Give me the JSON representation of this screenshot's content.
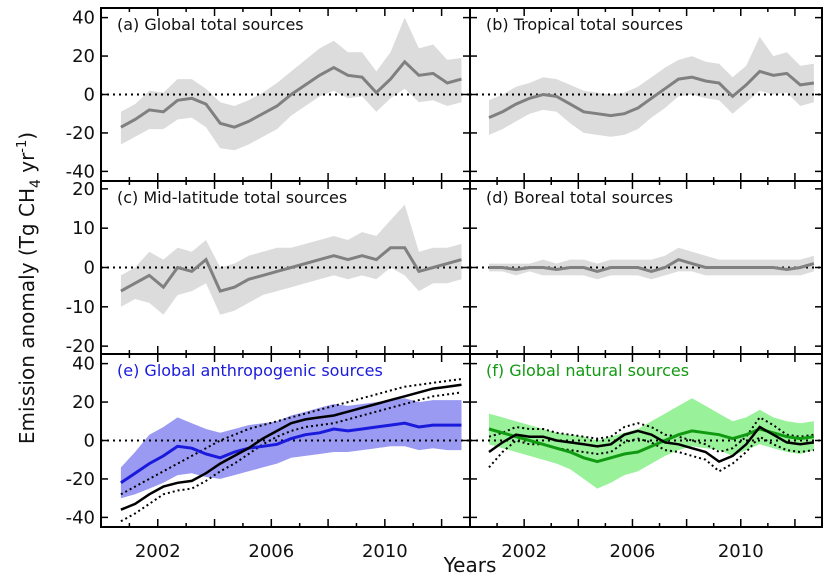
{
  "figure": {
    "ylabel_main": "Emission anomaly (Tg CH",
    "ylabel_sub": "4",
    "ylabel_unit": " yr",
    "ylabel_exp": "-1",
    "ylabel_close": ")",
    "xlabel": "Years",
    "x_ticks": [
      "2002",
      "2006",
      "2010"
    ]
  },
  "colors": {
    "gray_band": "#dcdcdc",
    "gray_line": "#808080",
    "blue_band": "#9a9af2",
    "blue_line": "#1a1adc",
    "green_band": "#99f299",
    "green_line": "#119911",
    "black": "#000000"
  },
  "chart_data": [
    {
      "panel": "a",
      "title": "(a) Global total sources",
      "title_color": "#111111",
      "type": "area",
      "xlim": [
        2000,
        2013
      ],
      "ylim": [
        -45,
        45
      ],
      "yticks": [
        -40,
        -20,
        0,
        20,
        40
      ],
      "x": [
        2000.7,
        2001.2,
        2001.7,
        2002.2,
        2002.7,
        2003.2,
        2003.7,
        2004.2,
        2004.7,
        2005.2,
        2005.7,
        2006.2,
        2006.7,
        2007.2,
        2007.7,
        2008.2,
        2008.7,
        2009.2,
        2009.7,
        2010.2,
        2010.7,
        2011.2,
        2011.7,
        2012.2,
        2012.7
      ],
      "series": [
        {
          "values": [
            -17,
            -13,
            -8,
            -9,
            -3,
            -2,
            -5,
            -15,
            -17,
            -14,
            -10,
            -6,
            0,
            5,
            10,
            14,
            10,
            9,
            1,
            8,
            17,
            10,
            11,
            6,
            8
          ],
          "band_lo": [
            -26,
            -22,
            -18,
            -18,
            -13,
            -12,
            -17,
            -28,
            -29,
            -26,
            -22,
            -18,
            -11,
            -6,
            -1,
            2,
            -2,
            -1,
            -9,
            -2,
            3,
            -4,
            -3,
            -6,
            -4
          ],
          "band_hi": [
            -9,
            -5,
            2,
            1,
            8,
            8,
            3,
            -4,
            -6,
            -3,
            1,
            6,
            12,
            18,
            24,
            28,
            22,
            22,
            12,
            22,
            40,
            24,
            26,
            18,
            19
          ]
        }
      ]
    },
    {
      "panel": "b",
      "title": "(b) Tropical total sources",
      "title_color": "#111111",
      "type": "area",
      "xlim": [
        2000,
        2013
      ],
      "ylim": [
        -45,
        45
      ],
      "yticks": [],
      "x": [
        2000.7,
        2001.2,
        2001.7,
        2002.2,
        2002.7,
        2003.2,
        2003.7,
        2004.2,
        2004.7,
        2005.2,
        2005.7,
        2006.2,
        2006.7,
        2007.2,
        2007.7,
        2008.2,
        2008.7,
        2009.2,
        2009.7,
        2010.2,
        2010.7,
        2011.2,
        2011.7,
        2012.2,
        2012.7
      ],
      "series": [
        {
          "values": [
            -12,
            -9,
            -5,
            -2,
            0,
            -1,
            -5,
            -9,
            -10,
            -11,
            -10,
            -7,
            -2,
            3,
            8,
            9,
            7,
            6,
            -1,
            5,
            12,
            10,
            11,
            5,
            6
          ],
          "band_lo": [
            -21,
            -18,
            -14,
            -10,
            -8,
            -9,
            -15,
            -20,
            -21,
            -22,
            -21,
            -18,
            -12,
            -7,
            -1,
            0,
            -2,
            -3,
            -10,
            -4,
            2,
            0,
            1,
            -6,
            -4
          ],
          "band_hi": [
            -3,
            0,
            4,
            6,
            9,
            8,
            5,
            2,
            1,
            0,
            1,
            4,
            9,
            14,
            18,
            20,
            17,
            16,
            9,
            15,
            30,
            20,
            22,
            15,
            16
          ]
        }
      ]
    },
    {
      "panel": "c",
      "title": "(c) Mid-latitude total sources",
      "title_color": "#111111",
      "type": "area",
      "xlim": [
        2000,
        2013
      ],
      "ylim": [
        -22,
        22
      ],
      "yticks": [
        -20,
        -10,
        0,
        10,
        20
      ],
      "x": [
        2000.7,
        2001.2,
        2001.7,
        2002.2,
        2002.7,
        2003.2,
        2003.7,
        2004.2,
        2004.7,
        2005.2,
        2005.7,
        2006.2,
        2006.7,
        2007.2,
        2007.7,
        2008.2,
        2008.7,
        2009.2,
        2009.7,
        2010.2,
        2010.7,
        2011.2,
        2011.7,
        2012.2,
        2012.7
      ],
      "series": [
        {
          "values": [
            -6,
            -4,
            -2,
            -5,
            0,
            -1,
            2,
            -6,
            -5,
            -3,
            -2,
            -1,
            0,
            1,
            2,
            3,
            2,
            3,
            2,
            5,
            5,
            -1,
            0,
            1,
            2
          ],
          "band_lo": [
            -10,
            -8,
            -9,
            -12,
            -7,
            -6,
            -4,
            -12,
            -11,
            -9,
            -7,
            -6,
            -5,
            -4,
            -3,
            -2,
            -3,
            -2,
            -3,
            0,
            -2,
            -6,
            -4,
            -4,
            -3
          ],
          "band_hi": [
            -2,
            0,
            4,
            2,
            5,
            4,
            7,
            0,
            1,
            3,
            4,
            5,
            5,
            6,
            7,
            8,
            7,
            9,
            8,
            12,
            16,
            4,
            5,
            5,
            6
          ]
        }
      ]
    },
    {
      "panel": "d",
      "title": "(d) Boreal total sources",
      "title_color": "#111111",
      "type": "area",
      "xlim": [
        2000,
        2013
      ],
      "ylim": [
        -22,
        22
      ],
      "yticks": [],
      "x": [
        2000.7,
        2001.2,
        2001.7,
        2002.2,
        2002.7,
        2003.2,
        2003.7,
        2004.2,
        2004.7,
        2005.2,
        2005.7,
        2006.2,
        2006.7,
        2007.2,
        2007.7,
        2008.2,
        2008.7,
        2009.2,
        2009.7,
        2010.2,
        2010.7,
        2011.2,
        2011.7,
        2012.2,
        2012.7
      ],
      "series": [
        {
          "values": [
            0,
            0,
            -0.5,
            0,
            0,
            -0.5,
            0,
            0,
            -1,
            0,
            0,
            0,
            -1,
            0,
            2,
            1,
            0,
            0,
            0,
            0,
            0,
            0,
            -0.5,
            0,
            1
          ],
          "band_lo": [
            -1,
            -1,
            -2,
            -1,
            -2,
            -2,
            -2,
            -2,
            -3,
            -2,
            -2,
            -2,
            -3,
            -2,
            -1,
            -1,
            -2,
            -2,
            -2,
            -2,
            -2,
            -2,
            -2,
            -2,
            -1
          ],
          "band_hi": [
            1,
            1,
            1,
            1,
            2,
            1,
            2,
            2,
            1,
            2,
            2,
            2,
            2,
            3,
            5,
            4,
            3,
            2,
            2,
            2,
            2,
            2,
            2,
            2,
            3
          ]
        }
      ]
    },
    {
      "panel": "e",
      "title": "(e) Global anthropogenic sources",
      "title_color": "#1a1adc",
      "type": "area",
      "xlim": [
        2000,
        2013
      ],
      "ylim": [
        -45,
        45
      ],
      "yticks": [
        -40,
        -20,
        0,
        20,
        40
      ],
      "x": [
        2000.7,
        2001.2,
        2001.7,
        2002.2,
        2002.7,
        2003.2,
        2003.7,
        2004.2,
        2004.7,
        2005.2,
        2005.7,
        2006.2,
        2006.7,
        2007.2,
        2007.7,
        2008.2,
        2008.7,
        2009.2,
        2009.7,
        2010.2,
        2010.7,
        2011.2,
        2011.7,
        2012.2,
        2012.7
      ],
      "series": [
        {
          "values": [
            -22,
            -17,
            -12,
            -8,
            -3,
            -4,
            -7,
            -9,
            -6,
            -4,
            -3,
            -2,
            1,
            3,
            4,
            6,
            5,
            6,
            7,
            8,
            9,
            7,
            8,
            8,
            8
          ],
          "band_lo": [
            -30,
            -28,
            -25,
            -22,
            -18,
            -17,
            -19,
            -20,
            -18,
            -16,
            -14,
            -12,
            -9,
            -8,
            -7,
            -6,
            -6,
            -5,
            -4,
            -3,
            -3,
            -5,
            -4,
            -5,
            -5
          ],
          "band_hi": [
            -14,
            -6,
            3,
            7,
            12,
            9,
            6,
            4,
            6,
            8,
            9,
            10,
            13,
            15,
            17,
            19,
            18,
            19,
            20,
            21,
            22,
            20,
            21,
            21,
            21
          ],
          "black_line": [
            -36,
            -33,
            -28,
            -24,
            -22,
            -21,
            -17,
            -12,
            -8,
            -4,
            1,
            5,
            9,
            11,
            12,
            13,
            15,
            17,
            19,
            21,
            23,
            25,
            27,
            28,
            29
          ],
          "black_lo": [
            -42,
            -38,
            -33,
            -28,
            -26,
            -25,
            -21,
            -16,
            -12,
            -7,
            -2,
            2,
            5,
            7,
            8,
            9,
            11,
            13,
            15,
            17,
            19,
            21,
            23,
            24,
            25
          ],
          "black_hi": [
            -28,
            -24,
            -20,
            -16,
            -12,
            -8,
            -4,
            0,
            3,
            6,
            8,
            10,
            12,
            14,
            16,
            18,
            20,
            22,
            24,
            26,
            28,
            29,
            30,
            31,
            32
          ]
        }
      ]
    },
    {
      "panel": "f",
      "title": "(f) Global natural sources",
      "title_color": "#119911",
      "type": "area",
      "xlim": [
        2000,
        2013
      ],
      "ylim": [
        -45,
        45
      ],
      "yticks": [],
      "x": [
        2000.7,
        2001.2,
        2001.7,
        2002.2,
        2002.7,
        2003.2,
        2003.7,
        2004.2,
        2004.7,
        2005.2,
        2005.7,
        2006.2,
        2006.7,
        2007.2,
        2007.7,
        2008.2,
        2008.7,
        2009.2,
        2009.7,
        2010.2,
        2010.7,
        2011.2,
        2011.7,
        2012.2,
        2012.7
      ],
      "series": [
        {
          "values": [
            6,
            4,
            2,
            0,
            -2,
            -4,
            -6,
            -9,
            -11,
            -9,
            -7,
            -6,
            -3,
            0,
            3,
            5,
            4,
            3,
            1,
            3,
            6,
            4,
            2,
            1,
            2
          ],
          "band_lo": [
            -2,
            -4,
            -6,
            -8,
            -10,
            -12,
            -15,
            -20,
            -25,
            -22,
            -18,
            -16,
            -12,
            -8,
            -5,
            -3,
            -4,
            -5,
            -8,
            -5,
            -2,
            -4,
            -6,
            -7,
            -5
          ],
          "band_hi": [
            14,
            12,
            10,
            8,
            6,
            4,
            3,
            2,
            0,
            2,
            4,
            6,
            10,
            14,
            18,
            22,
            18,
            14,
            10,
            12,
            16,
            12,
            10,
            9,
            10
          ],
          "black_line": [
            -6,
            -1,
            3,
            2,
            2,
            0,
            -1,
            -2,
            -3,
            -2,
            3,
            5,
            3,
            -1,
            -2,
            -4,
            -6,
            -11,
            -8,
            -2,
            7,
            3,
            -1,
            -2,
            -1
          ],
          "black_lo": [
            -14,
            -6,
            0,
            -2,
            -2,
            -4,
            -5,
            -6,
            -7,
            -6,
            -1,
            1,
            -1,
            -5,
            -6,
            -8,
            -10,
            -16,
            -12,
            -6,
            2,
            -2,
            -5,
            -6,
            -5
          ],
          "black_hi": [
            2,
            4,
            7,
            6,
            6,
            4,
            3,
            2,
            1,
            2,
            7,
            9,
            7,
            3,
            2,
            0,
            -2,
            -6,
            -4,
            2,
            12,
            8,
            3,
            2,
            3
          ]
        }
      ]
    }
  ]
}
